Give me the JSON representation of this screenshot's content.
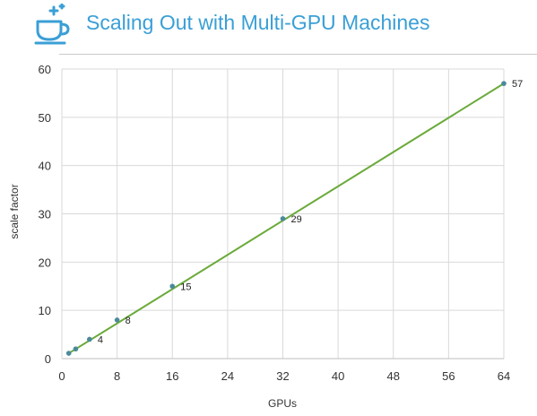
{
  "title": "Scaling Out with Multi-GPU Machines",
  "logo_icon": "coffee-cup-sparkle-icon",
  "colors": {
    "title": "#3a9fd6",
    "fit_line": "#6aaa3a",
    "points": "#4a8a9a",
    "grid": "#d9d9d9"
  },
  "chart_data": {
    "type": "scatter",
    "xlabel": "GPUs",
    "ylabel": "scale factor",
    "xlim": [
      0,
      64
    ],
    "ylim": [
      0,
      60
    ],
    "xticks": [
      0,
      8,
      16,
      24,
      32,
      40,
      48,
      56,
      64
    ],
    "yticks": [
      0,
      10,
      20,
      30,
      40,
      50,
      60
    ],
    "grid": true,
    "legend": "none",
    "series": [
      {
        "x": [
          1,
          2,
          4,
          8,
          16,
          32,
          64
        ],
        "y": [
          1.1,
          2,
          4,
          8,
          15,
          29,
          57
        ],
        "labels": [
          "",
          "",
          "4",
          "8",
          "15",
          "29",
          "57"
        ]
      }
    ],
    "trendline": {
      "type": "linear",
      "from": [
        1,
        1.1
      ],
      "to": [
        64,
        57
      ]
    }
  }
}
